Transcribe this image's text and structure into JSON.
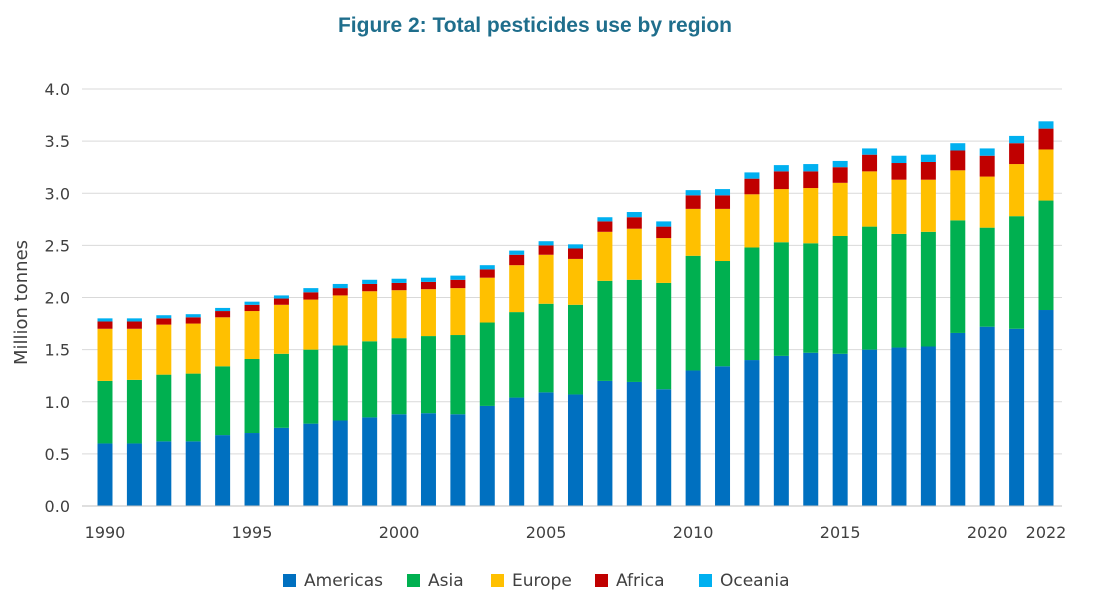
{
  "chart_data": {
    "type": "bar",
    "stacked": true,
    "title": "Figure 2: Total pesticides use by region",
    "ylabel": "Million tonnes",
    "xlabel": "",
    "ylim": [
      0,
      4.0
    ],
    "yticks": [
      "0.0",
      "0.5",
      "1.0",
      "1.5",
      "2.0",
      "2.5",
      "3.0",
      "3.5",
      "4.0"
    ],
    "xtick_labels": [
      {
        "year": 1990,
        "label": "1990"
      },
      {
        "year": 1995,
        "label": "1995"
      },
      {
        "year": 2000,
        "label": "2000"
      },
      {
        "year": 2005,
        "label": "2005"
      },
      {
        "year": 2010,
        "label": "2010"
      },
      {
        "year": 2015,
        "label": "2015"
      },
      {
        "year": 2020,
        "label": "2020"
      },
      {
        "year": 2022,
        "label": "2022"
      }
    ],
    "grid": true,
    "legend": "bottom",
    "categories": [
      1990,
      1991,
      1992,
      1993,
      1994,
      1995,
      1996,
      1997,
      1998,
      1999,
      2000,
      2001,
      2002,
      2003,
      2004,
      2005,
      2006,
      2007,
      2008,
      2009,
      2010,
      2011,
      2012,
      2013,
      2014,
      2015,
      2016,
      2017,
      2018,
      2019,
      2020,
      2021,
      2022
    ],
    "series": [
      {
        "name": "Americas",
        "color": "#0070C0",
        "values": [
          0.6,
          0.6,
          0.62,
          0.62,
          0.68,
          0.7,
          0.75,
          0.79,
          0.82,
          0.85,
          0.88,
          0.89,
          0.88,
          0.96,
          1.04,
          1.09,
          1.07,
          1.2,
          1.19,
          1.12,
          1.3,
          1.34,
          1.4,
          1.44,
          1.47,
          1.46,
          1.5,
          1.52,
          1.53,
          1.66,
          1.72,
          1.7,
          1.88
        ]
      },
      {
        "name": "Asia",
        "color": "#00B050",
        "values": [
          0.6,
          0.61,
          0.64,
          0.65,
          0.66,
          0.71,
          0.71,
          0.71,
          0.72,
          0.73,
          0.73,
          0.74,
          0.76,
          0.8,
          0.82,
          0.85,
          0.86,
          0.96,
          0.98,
          1.02,
          1.1,
          1.01,
          1.08,
          1.09,
          1.05,
          1.13,
          1.18,
          1.09,
          1.1,
          1.08,
          0.95,
          1.08,
          1.05
        ]
      },
      {
        "name": "Europe",
        "color": "#FFC000",
        "values": [
          0.5,
          0.49,
          0.48,
          0.48,
          0.47,
          0.46,
          0.47,
          0.48,
          0.48,
          0.48,
          0.46,
          0.45,
          0.45,
          0.43,
          0.45,
          0.47,
          0.44,
          0.47,
          0.49,
          0.43,
          0.45,
          0.5,
          0.51,
          0.51,
          0.53,
          0.51,
          0.53,
          0.52,
          0.5,
          0.48,
          0.49,
          0.5,
          0.49
        ]
      },
      {
        "name": "Africa",
        "color": "#C00000",
        "values": [
          0.07,
          0.07,
          0.06,
          0.06,
          0.06,
          0.06,
          0.06,
          0.07,
          0.07,
          0.07,
          0.07,
          0.07,
          0.08,
          0.08,
          0.1,
          0.09,
          0.1,
          0.1,
          0.11,
          0.11,
          0.13,
          0.13,
          0.15,
          0.17,
          0.16,
          0.15,
          0.16,
          0.16,
          0.17,
          0.19,
          0.2,
          0.2,
          0.2
        ]
      },
      {
        "name": "Oceania",
        "color": "#00B0F0",
        "values": [
          0.03,
          0.03,
          0.03,
          0.03,
          0.03,
          0.03,
          0.03,
          0.04,
          0.04,
          0.04,
          0.04,
          0.04,
          0.04,
          0.04,
          0.04,
          0.04,
          0.04,
          0.04,
          0.05,
          0.05,
          0.05,
          0.06,
          0.06,
          0.06,
          0.07,
          0.06,
          0.06,
          0.07,
          0.07,
          0.07,
          0.07,
          0.07,
          0.07
        ]
      }
    ]
  }
}
